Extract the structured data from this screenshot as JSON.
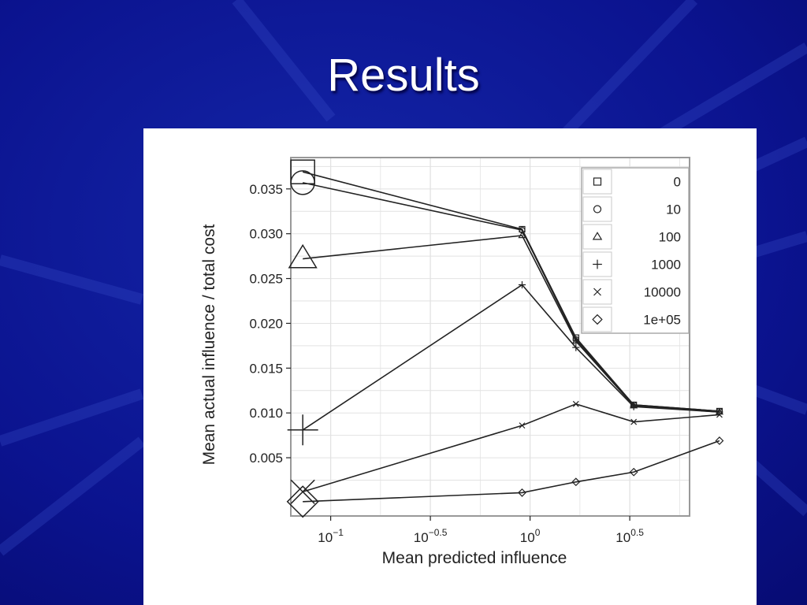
{
  "slide": {
    "title": "Results"
  },
  "colors": {
    "background": "#0a0f8c",
    "panel": "#ffffff",
    "line": "#222222",
    "grid": "#e2e2e2",
    "frame": "#999999"
  },
  "chart_data": {
    "type": "line",
    "xlabel": "Mean predicted influence",
    "ylabel": "Mean actual influence / total cost",
    "x_scale": "log10",
    "xlim": [
      -1.2,
      0.8
    ],
    "ylim": [
      -0.0015,
      0.0385
    ],
    "x_ticks": [
      {
        "base": "10",
        "exp": "−1",
        "value": -1.0
      },
      {
        "base": "10",
        "exp": "−0.5",
        "value": -0.5
      },
      {
        "base": "10",
        "exp": "0",
        "value": 0.0
      },
      {
        "base": "10",
        "exp": "0.5",
        "value": 0.5
      }
    ],
    "y_ticks": [
      {
        "label": "0.005",
        "value": 0.005
      },
      {
        "label": "0.010",
        "value": 0.01
      },
      {
        "label": "0.015",
        "value": 0.015
      },
      {
        "label": "0.020",
        "value": 0.02
      },
      {
        "label": "0.025",
        "value": 0.025
      },
      {
        "label": "0.030",
        "value": 0.03
      },
      {
        "label": "0.035",
        "value": 0.035
      }
    ],
    "grid": true,
    "legend_position": "top-right",
    "series": [
      {
        "name": "0",
        "marker": "square",
        "x": [
          -1.14,
          -0.04,
          0.23,
          0.52,
          0.95
        ],
        "y": [
          0.0369,
          0.0305,
          0.0184,
          0.0109,
          0.0102
        ]
      },
      {
        "name": "10",
        "marker": "circle",
        "x": [
          -1.14,
          -0.04,
          0.23,
          0.52,
          0.95
        ],
        "y": [
          0.0357,
          0.0304,
          0.0182,
          0.0109,
          0.0102
        ]
      },
      {
        "name": "100",
        "marker": "triangle",
        "x": [
          -1.14,
          -0.04,
          0.23,
          0.52,
          0.95
        ],
        "y": [
          0.0272,
          0.0298,
          0.018,
          0.0108,
          0.0101
        ]
      },
      {
        "name": "1000",
        "marker": "plus",
        "x": [
          -1.14,
          -0.04,
          0.23,
          0.52,
          0.95
        ],
        "y": [
          0.0081,
          0.0243,
          0.0173,
          0.0107,
          0.0101
        ]
      },
      {
        "name": "10000",
        "marker": "cross",
        "x": [
          -1.14,
          -0.04,
          0.23,
          0.52,
          0.95
        ],
        "y": [
          0.0012,
          0.0086,
          0.011,
          0.009,
          0.0098
        ]
      },
      {
        "name": "1e+05",
        "marker": "diamond",
        "x": [
          -1.14,
          -0.04,
          0.23,
          0.52,
          0.95
        ],
        "y": [
          0.0001,
          0.0011,
          0.0023,
          0.0034,
          0.0069
        ]
      }
    ]
  }
}
